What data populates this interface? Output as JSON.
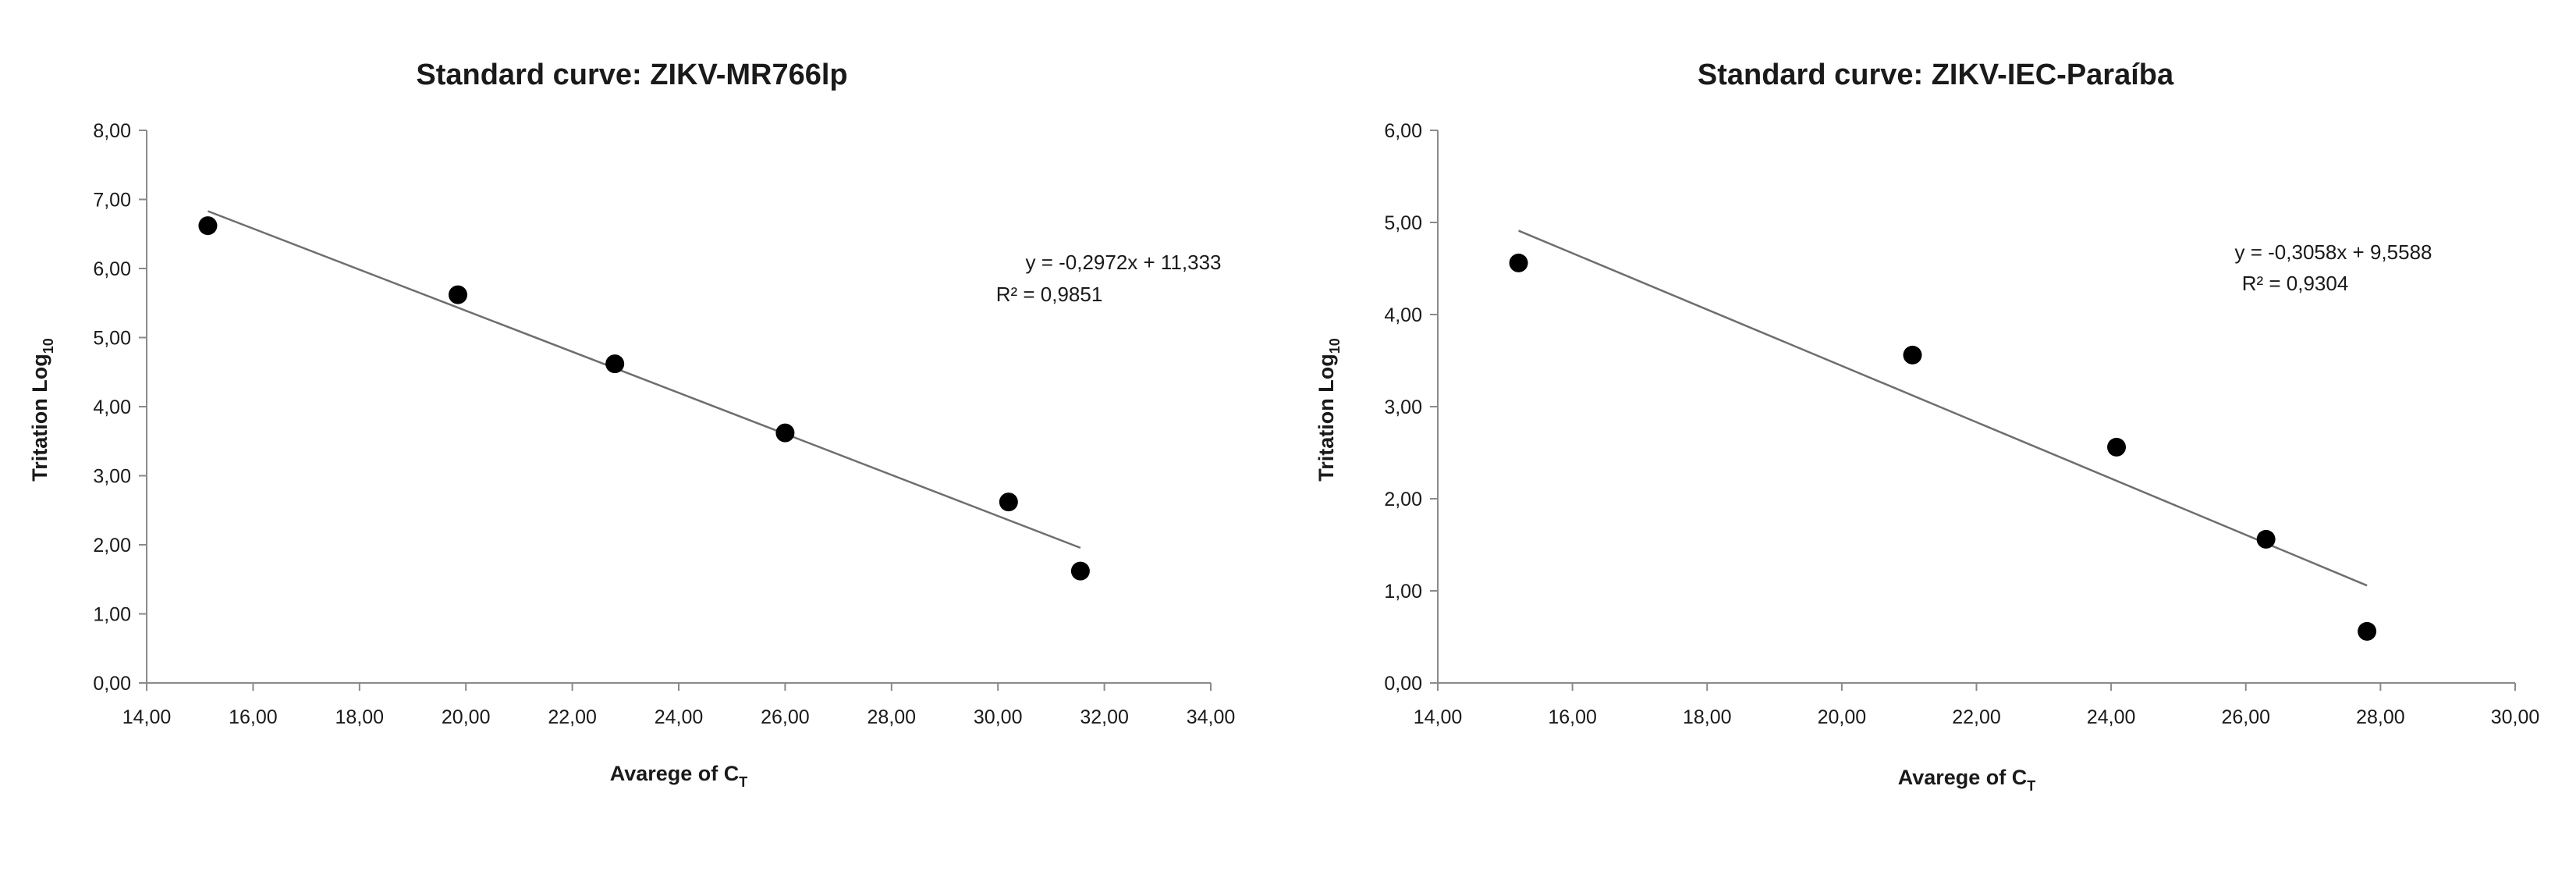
{
  "chart_data": [
    {
      "type": "scatter",
      "title": "Standard curve: ZIKV-MR766lp",
      "xlabel": "Avarege of  C",
      "xlabel_sub": "T",
      "ylabel": "Tritation Log",
      "ylabel_sub": "10",
      "xlim": [
        14,
        34
      ],
      "ylim": [
        0,
        8
      ],
      "x_ticks": [
        "14,00",
        "16,00",
        "18,00",
        "20,00",
        "22,00",
        "24,00",
        "26,00",
        "28,00",
        "30,00",
        "32,00",
        "34,00"
      ],
      "y_ticks": [
        "0,00",
        "1,00",
        "2,00",
        "3,00",
        "4,00",
        "5,00",
        "6,00",
        "7,00",
        "8,00"
      ],
      "grid": false,
      "points": [
        {
          "x": 15.15,
          "y": 6.62
        },
        {
          "x": 19.85,
          "y": 5.62
        },
        {
          "x": 22.8,
          "y": 4.62
        },
        {
          "x": 26.0,
          "y": 3.62
        },
        {
          "x": 30.2,
          "y": 2.62
        },
        {
          "x": 31.55,
          "y": 1.62
        }
      ],
      "trendline": {
        "slope": -0.2972,
        "intercept": 11.333,
        "x_range": [
          15.15,
          31.55
        ]
      },
      "equation": "y = -0,2972x + 11,333",
      "r2_label": "R² = 0,9851"
    },
    {
      "type": "scatter",
      "title": "Standard curve: ZIKV-IEC-Paraíba",
      "xlabel": "Avarege of  C",
      "xlabel_sub": "T",
      "ylabel": "Tritation Log",
      "ylabel_sub": "10",
      "xlim": [
        14,
        30
      ],
      "ylim": [
        0,
        6
      ],
      "x_ticks": [
        "14,00",
        "16,00",
        "18,00",
        "20,00",
        "22,00",
        "24,00",
        "26,00",
        "28,00",
        "30,00"
      ],
      "y_ticks": [
        "0,00",
        "1,00",
        "2,00",
        "3,00",
        "4,00",
        "5,00",
        "6,00"
      ],
      "grid": false,
      "points": [
        {
          "x": 15.2,
          "y": 4.56
        },
        {
          "x": 21.05,
          "y": 3.56
        },
        {
          "x": 24.08,
          "y": 2.56
        },
        {
          "x": 26.3,
          "y": 1.56
        },
        {
          "x": 27.8,
          "y": 0.56
        }
      ],
      "trendline": {
        "slope": -0.3058,
        "intercept": 9.5588,
        "x_range": [
          15.2,
          27.8
        ]
      },
      "equation": "y = -0,3058x + 9,5588",
      "r2_label": "R² = 0,9304"
    }
  ]
}
